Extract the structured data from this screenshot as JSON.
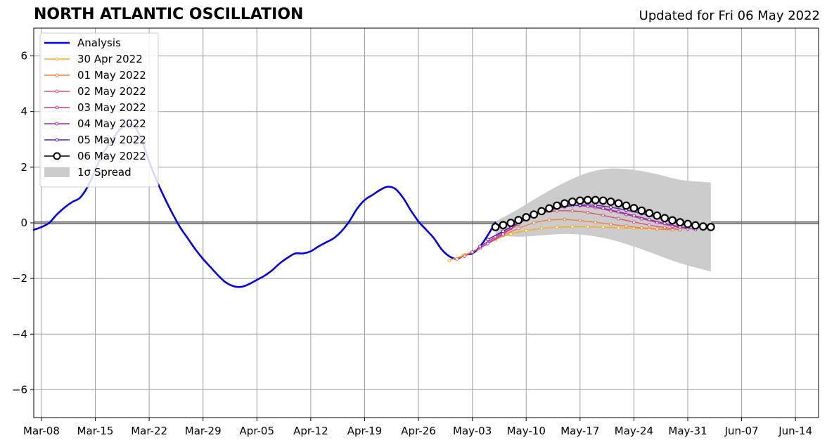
{
  "header": {
    "title": "NORTH ATLANTIC OSCILLATION",
    "updated": "Updated for Fri 06 May 2022"
  },
  "chart_data": {
    "type": "line",
    "title": "NORTH ATLANTIC OSCILLATION",
    "subtitle": "Updated for Fri 06 May 2022",
    "xlabel": "",
    "ylabel": "",
    "x_unit": "date",
    "xlim": [
      "2022-03-07",
      "2022-06-17"
    ],
    "ylim": [
      -7,
      7
    ],
    "x_ticks": [
      {
        "date": "2022-03-08",
        "label": "Mar-08"
      },
      {
        "date": "2022-03-15",
        "label": "Mar-15"
      },
      {
        "date": "2022-03-22",
        "label": "Mar-22"
      },
      {
        "date": "2022-03-29",
        "label": "Mar-29"
      },
      {
        "date": "2022-04-05",
        "label": "Apr-05"
      },
      {
        "date": "2022-04-12",
        "label": "Apr-12"
      },
      {
        "date": "2022-04-19",
        "label": "Apr-19"
      },
      {
        "date": "2022-04-26",
        "label": "Apr-26"
      },
      {
        "date": "2022-05-03",
        "label": "May-03"
      },
      {
        "date": "2022-05-10",
        "label": "May-10"
      },
      {
        "date": "2022-05-17",
        "label": "May-17"
      },
      {
        "date": "2022-05-24",
        "label": "May-24"
      },
      {
        "date": "2022-05-31",
        "label": "May-31"
      },
      {
        "date": "2022-06-07",
        "label": "Jun-07"
      },
      {
        "date": "2022-06-14",
        "label": "Jun-14"
      }
    ],
    "y_ticks": [
      {
        "value": 6,
        "label": "6"
      },
      {
        "value": 4,
        "label": "4"
      },
      {
        "value": 2,
        "label": "2"
      },
      {
        "value": 0,
        "label": "0"
      },
      {
        "value": -2,
        "label": "−2"
      },
      {
        "value": -4,
        "label": "−4"
      },
      {
        "value": -6,
        "label": "−6"
      }
    ],
    "grid": true,
    "zero_line": true,
    "legend_position": "upper-left",
    "series": [
      {
        "name": "Analysis",
        "color": "#0000ee",
        "marker": "none",
        "points": [
          [
            "2022-03-07",
            -0.25
          ],
          [
            "2022-03-08",
            -0.15
          ],
          [
            "2022-03-09",
            0.0
          ],
          [
            "2022-03-10",
            0.3
          ],
          [
            "2022-03-11",
            0.55
          ],
          [
            "2022-03-12",
            0.75
          ],
          [
            "2022-03-13",
            0.9
          ],
          [
            "2022-03-14",
            1.3
          ],
          [
            "2022-03-15",
            1.9
          ],
          [
            "2022-03-16",
            2.5
          ],
          [
            "2022-03-17",
            2.9
          ],
          [
            "2022-03-18",
            3.3
          ],
          [
            "2022-03-19",
            3.5
          ],
          [
            "2022-03-20",
            3.5
          ],
          [
            "2022-03-21",
            3.0
          ],
          [
            "2022-03-22",
            2.2
          ],
          [
            "2022-03-23",
            1.5
          ],
          [
            "2022-03-24",
            0.9
          ],
          [
            "2022-03-25",
            0.35
          ],
          [
            "2022-03-26",
            -0.15
          ],
          [
            "2022-03-27",
            -0.55
          ],
          [
            "2022-03-28",
            -0.95
          ],
          [
            "2022-03-29",
            -1.3
          ],
          [
            "2022-03-30",
            -1.6
          ],
          [
            "2022-03-31",
            -1.9
          ],
          [
            "2022-04-01",
            -2.15
          ],
          [
            "2022-04-02",
            -2.28
          ],
          [
            "2022-04-03",
            -2.3
          ],
          [
            "2022-04-04",
            -2.2
          ],
          [
            "2022-04-05",
            -2.05
          ],
          [
            "2022-04-06",
            -1.9
          ],
          [
            "2022-04-07",
            -1.7
          ],
          [
            "2022-04-08",
            -1.45
          ],
          [
            "2022-04-09",
            -1.25
          ],
          [
            "2022-04-10",
            -1.1
          ],
          [
            "2022-04-11",
            -1.1
          ],
          [
            "2022-04-12",
            -1.02
          ],
          [
            "2022-04-13",
            -0.85
          ],
          [
            "2022-04-14",
            -0.7
          ],
          [
            "2022-04-15",
            -0.55
          ],
          [
            "2022-04-16",
            -0.3
          ],
          [
            "2022-04-17",
            0.05
          ],
          [
            "2022-04-18",
            0.5
          ],
          [
            "2022-04-19",
            0.82
          ],
          [
            "2022-04-20",
            1.0
          ],
          [
            "2022-04-21",
            1.18
          ],
          [
            "2022-04-22",
            1.3
          ],
          [
            "2022-04-23",
            1.22
          ],
          [
            "2022-04-24",
            0.9
          ],
          [
            "2022-04-25",
            0.45
          ],
          [
            "2022-04-26",
            0.05
          ],
          [
            "2022-04-27",
            -0.25
          ],
          [
            "2022-04-28",
            -0.55
          ],
          [
            "2022-04-29",
            -0.95
          ],
          [
            "2022-04-30",
            -1.2
          ],
          [
            "2022-05-01",
            -1.3
          ],
          [
            "2022-05-02",
            -1.15
          ],
          [
            "2022-05-03",
            -1.1
          ],
          [
            "2022-05-04",
            -0.85
          ],
          [
            "2022-05-05",
            -0.45
          ],
          [
            "2022-05-06",
            0.02
          ]
        ]
      },
      {
        "name": "30 Apr 2022",
        "color": "#f9a825",
        "marker": "small",
        "points": [
          [
            "2022-04-30",
            -1.35
          ],
          [
            "2022-05-02",
            -1.15
          ],
          [
            "2022-05-04",
            -0.9
          ],
          [
            "2022-05-06",
            -0.6
          ],
          [
            "2022-05-08",
            -0.4
          ],
          [
            "2022-05-10",
            -0.28
          ],
          [
            "2022-05-12",
            -0.2
          ],
          [
            "2022-05-14",
            -0.16
          ],
          [
            "2022-05-16",
            -0.14
          ],
          [
            "2022-05-18",
            -0.14
          ],
          [
            "2022-05-20",
            -0.16
          ],
          [
            "2022-05-22",
            -0.18
          ],
          [
            "2022-05-24",
            -0.2
          ],
          [
            "2022-05-26",
            -0.22
          ],
          [
            "2022-05-28",
            -0.24
          ],
          [
            "2022-05-30",
            -0.25
          ]
        ]
      },
      {
        "name": "01 May 2022",
        "color": "#f07f3c",
        "marker": "small",
        "points": [
          [
            "2022-05-01",
            -1.3
          ],
          [
            "2022-05-03",
            -1.05
          ],
          [
            "2022-05-05",
            -0.75
          ],
          [
            "2022-05-07",
            -0.45
          ],
          [
            "2022-05-09",
            -0.2
          ],
          [
            "2022-05-11",
            0.0
          ],
          [
            "2022-05-13",
            0.1
          ],
          [
            "2022-05-15",
            0.12
          ],
          [
            "2022-05-17",
            0.08
          ],
          [
            "2022-05-19",
            0.02
          ],
          [
            "2022-05-21",
            -0.05
          ],
          [
            "2022-05-23",
            -0.12
          ],
          [
            "2022-05-25",
            -0.18
          ],
          [
            "2022-05-27",
            -0.22
          ],
          [
            "2022-05-29",
            -0.25
          ]
        ]
      },
      {
        "name": "02 May 2022",
        "color": "#e0506e",
        "marker": "small",
        "points": [
          [
            "2022-05-02",
            -1.2
          ],
          [
            "2022-05-04",
            -0.9
          ],
          [
            "2022-05-06",
            -0.55
          ],
          [
            "2022-05-08",
            -0.2
          ],
          [
            "2022-05-10",
            0.15
          ],
          [
            "2022-05-12",
            0.35
          ],
          [
            "2022-05-14",
            0.43
          ],
          [
            "2022-05-16",
            0.43
          ],
          [
            "2022-05-18",
            0.37
          ],
          [
            "2022-05-20",
            0.27
          ],
          [
            "2022-05-22",
            0.15
          ],
          [
            "2022-05-24",
            0.03
          ],
          [
            "2022-05-26",
            -0.08
          ],
          [
            "2022-05-28",
            -0.17
          ],
          [
            "2022-05-30",
            -0.24
          ]
        ]
      },
      {
        "name": "03 May 2022",
        "color": "#c0399a",
        "marker": "small",
        "points": [
          [
            "2022-05-03",
            -1.05
          ],
          [
            "2022-05-05",
            -0.75
          ],
          [
            "2022-05-07",
            -0.4
          ],
          [
            "2022-05-09",
            -0.05
          ],
          [
            "2022-05-11",
            0.3
          ],
          [
            "2022-05-13",
            0.52
          ],
          [
            "2022-05-15",
            0.62
          ],
          [
            "2022-05-17",
            0.62
          ],
          [
            "2022-05-19",
            0.55
          ],
          [
            "2022-05-21",
            0.43
          ],
          [
            "2022-05-23",
            0.3
          ],
          [
            "2022-05-25",
            0.15
          ],
          [
            "2022-05-27",
            0.01
          ],
          [
            "2022-05-29",
            -0.12
          ],
          [
            "2022-05-31",
            -0.22
          ]
        ]
      },
      {
        "name": "04 May 2022",
        "color": "#9c27b0",
        "marker": "small",
        "points": [
          [
            "2022-05-04",
            -0.85
          ],
          [
            "2022-05-06",
            -0.5
          ],
          [
            "2022-05-08",
            -0.15
          ],
          [
            "2022-05-10",
            0.15
          ],
          [
            "2022-05-12",
            0.4
          ],
          [
            "2022-05-14",
            0.55
          ],
          [
            "2022-05-16",
            0.62
          ],
          [
            "2022-05-18",
            0.6
          ],
          [
            "2022-05-20",
            0.52
          ],
          [
            "2022-05-22",
            0.4
          ],
          [
            "2022-05-24",
            0.26
          ],
          [
            "2022-05-26",
            0.12
          ],
          [
            "2022-05-28",
            -0.02
          ],
          [
            "2022-05-30",
            -0.14
          ],
          [
            "2022-06-01",
            -0.24
          ]
        ]
      },
      {
        "name": "05 May 2022",
        "color": "#5e1fa8",
        "marker": "small",
        "points": [
          [
            "2022-05-05",
            -0.6
          ],
          [
            "2022-05-07",
            -0.3
          ],
          [
            "2022-05-09",
            0.0
          ],
          [
            "2022-05-11",
            0.25
          ],
          [
            "2022-05-13",
            0.45
          ],
          [
            "2022-05-15",
            0.58
          ],
          [
            "2022-05-17",
            0.64
          ],
          [
            "2022-05-19",
            0.63
          ],
          [
            "2022-05-21",
            0.56
          ],
          [
            "2022-05-23",
            0.46
          ],
          [
            "2022-05-25",
            0.33
          ],
          [
            "2022-05-27",
            0.19
          ],
          [
            "2022-05-29",
            0.05
          ],
          [
            "2022-05-31",
            -0.07
          ],
          [
            "2022-06-02",
            -0.16
          ]
        ]
      },
      {
        "name": "06 May 2022",
        "color": "#000000",
        "marker": "circle",
        "points": [
          [
            "2022-05-06",
            -0.15
          ],
          [
            "2022-05-07",
            -0.08
          ],
          [
            "2022-05-08",
            0.0
          ],
          [
            "2022-05-09",
            0.1
          ],
          [
            "2022-05-10",
            0.2
          ],
          [
            "2022-05-11",
            0.3
          ],
          [
            "2022-05-12",
            0.42
          ],
          [
            "2022-05-13",
            0.52
          ],
          [
            "2022-05-14",
            0.62
          ],
          [
            "2022-05-15",
            0.7
          ],
          [
            "2022-05-16",
            0.76
          ],
          [
            "2022-05-17",
            0.8
          ],
          [
            "2022-05-18",
            0.82
          ],
          [
            "2022-05-19",
            0.82
          ],
          [
            "2022-05-20",
            0.8
          ],
          [
            "2022-05-21",
            0.76
          ],
          [
            "2022-05-22",
            0.7
          ],
          [
            "2022-05-23",
            0.62
          ],
          [
            "2022-05-24",
            0.53
          ],
          [
            "2022-05-25",
            0.44
          ],
          [
            "2022-05-26",
            0.35
          ],
          [
            "2022-05-27",
            0.26
          ],
          [
            "2022-05-28",
            0.17
          ],
          [
            "2022-05-29",
            0.09
          ],
          [
            "2022-05-30",
            0.02
          ],
          [
            "2022-05-31",
            -0.04
          ],
          [
            "2022-06-01",
            -0.09
          ],
          [
            "2022-06-02",
            -0.13
          ],
          [
            "2022-06-03",
            -0.15
          ]
        ]
      }
    ],
    "spread": {
      "name": "1σ Spread",
      "color": "#cccccc",
      "upper": [
        [
          "2022-05-06",
          0.05
        ],
        [
          "2022-05-09",
          0.5
        ],
        [
          "2022-05-12",
          1.0
        ],
        [
          "2022-05-15",
          1.45
        ],
        [
          "2022-05-18",
          1.8
        ],
        [
          "2022-05-21",
          1.95
        ],
        [
          "2022-05-24",
          1.9
        ],
        [
          "2022-05-27",
          1.75
        ],
        [
          "2022-05-30",
          1.55
        ],
        [
          "2022-06-03",
          1.45
        ]
      ],
      "lower": [
        [
          "2022-05-06",
          -0.45
        ],
        [
          "2022-05-09",
          -0.5
        ],
        [
          "2022-05-12",
          -0.45
        ],
        [
          "2022-05-15",
          -0.4
        ],
        [
          "2022-05-18",
          -0.45
        ],
        [
          "2022-05-21",
          -0.6
        ],
        [
          "2022-05-24",
          -0.85
        ],
        [
          "2022-05-27",
          -1.15
        ],
        [
          "2022-05-30",
          -1.45
        ],
        [
          "2022-06-03",
          -1.75
        ]
      ]
    }
  }
}
